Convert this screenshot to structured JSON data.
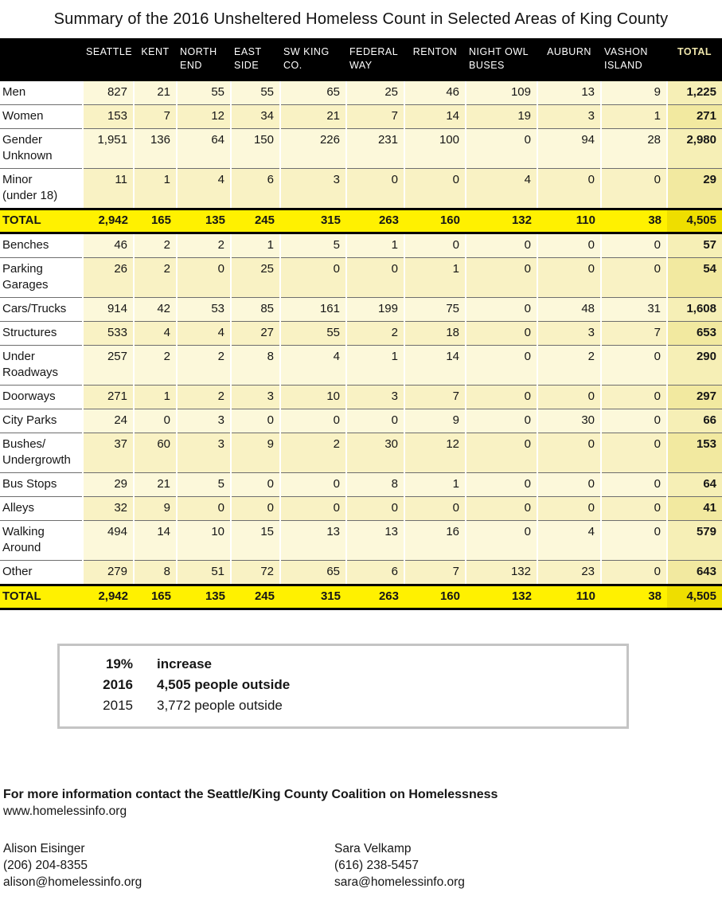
{
  "title": "Summary of the 2016 Unsheltered Homeless Count in Selected Areas of King County",
  "table": {
    "columns": [
      "SEATTLE",
      "KENT",
      "NORTH END",
      "EAST SIDE",
      "SW KING CO.",
      "FEDERAL WAY",
      "RENTON",
      "NIGHT OWL BUSES",
      "AUBURN",
      "VASHON ISLAND",
      "TOTAL"
    ],
    "rows": [
      {
        "label": [
          "Men"
        ],
        "type": "data",
        "values": [
          "827",
          "21",
          "55",
          "55",
          "65",
          "25",
          "46",
          "109",
          "13",
          "9"
        ],
        "total": "1,225"
      },
      {
        "label": [
          "Women"
        ],
        "type": "data",
        "values": [
          "153",
          "7",
          "12",
          "34",
          "21",
          "7",
          "14",
          "19",
          "3",
          "1"
        ],
        "total": "271"
      },
      {
        "label": [
          "Gender",
          "Unknown"
        ],
        "type": "data",
        "values": [
          "1,951",
          "136",
          "64",
          "150",
          "226",
          "231",
          "100",
          "0",
          "94",
          "28"
        ],
        "total": "2,980"
      },
      {
        "label": [
          "Minor",
          "(under 18)"
        ],
        "type": "data",
        "values": [
          "11",
          "1",
          "4",
          "6",
          "3",
          "0",
          "0",
          "4",
          "0",
          "0"
        ],
        "total": "29"
      },
      {
        "label": [
          "TOTAL"
        ],
        "type": "total",
        "values": [
          "2,942",
          "165",
          "135",
          "245",
          "315",
          "263",
          "160",
          "132",
          "110",
          "38"
        ],
        "total": "4,505"
      },
      {
        "label": [
          "Benches"
        ],
        "type": "data",
        "values": [
          "46",
          "2",
          "2",
          "1",
          "5",
          "1",
          "0",
          "0",
          "0",
          "0"
        ],
        "total": "57"
      },
      {
        "label": [
          "Parking",
          "Garages"
        ],
        "type": "data",
        "values": [
          "26",
          "2",
          "0",
          "25",
          "0",
          "0",
          "1",
          "0",
          "0",
          "0"
        ],
        "total": "54"
      },
      {
        "label": [
          "Cars/Trucks"
        ],
        "type": "data",
        "values": [
          "914",
          "42",
          "53",
          "85",
          "161",
          "199",
          "75",
          "0",
          "48",
          "31"
        ],
        "total": "1,608"
      },
      {
        "label": [
          "Structures"
        ],
        "type": "data",
        "values": [
          "533",
          "4",
          "4",
          "27",
          "55",
          "2",
          "18",
          "0",
          "3",
          "7"
        ],
        "total": "653"
      },
      {
        "label": [
          "Under",
          "Roadways"
        ],
        "type": "data",
        "values": [
          "257",
          "2",
          "2",
          "8",
          "4",
          "1",
          "14",
          "0",
          "2",
          "0"
        ],
        "total": "290"
      },
      {
        "label": [
          "Doorways"
        ],
        "type": "data",
        "values": [
          "271",
          "1",
          "2",
          "3",
          "10",
          "3",
          "7",
          "0",
          "0",
          "0"
        ],
        "total": "297"
      },
      {
        "label": [
          "City Parks"
        ],
        "type": "data",
        "values": [
          "24",
          "0",
          "3",
          "0",
          "0",
          "0",
          "9",
          "0",
          "30",
          "0"
        ],
        "total": "66"
      },
      {
        "label": [
          "Bushes/",
          "Undergrowth"
        ],
        "type": "data",
        "values": [
          "37",
          "60",
          "3",
          "9",
          "2",
          "30",
          "12",
          "0",
          "0",
          "0"
        ],
        "total": "153"
      },
      {
        "label": [
          "Bus Stops"
        ],
        "type": "data",
        "values": [
          "29",
          "21",
          "5",
          "0",
          "0",
          "8",
          "1",
          "0",
          "0",
          "0"
        ],
        "total": "64"
      },
      {
        "label": [
          "Alleys"
        ],
        "type": "data",
        "values": [
          "32",
          "9",
          "0",
          "0",
          "0",
          "0",
          "0",
          "0",
          "0",
          "0"
        ],
        "total": "41"
      },
      {
        "label": [
          "Walking",
          "Around"
        ],
        "type": "data",
        "values": [
          "494",
          "14",
          "10",
          "15",
          "13",
          "13",
          "16",
          "0",
          "4",
          "0"
        ],
        "total": "579"
      },
      {
        "label": [
          "Other"
        ],
        "type": "data",
        "values": [
          "279",
          "8",
          "51",
          "72",
          "65",
          "6",
          "7",
          "132",
          "23",
          "0"
        ],
        "total": "643"
      },
      {
        "label": [
          "TOTAL"
        ],
        "type": "total",
        "values": [
          "2,942",
          "165",
          "135",
          "245",
          "315",
          "263",
          "160",
          "132",
          "110",
          "38"
        ],
        "total": "4,505"
      }
    ]
  },
  "summary_box": {
    "lines": [
      {
        "left": "19%",
        "right": "increase",
        "bold": true
      },
      {
        "left": "2016",
        "right": "4,505 people outside",
        "bold": true
      },
      {
        "left": "2015",
        "right": "3,772 people outside",
        "bold": false
      }
    ]
  },
  "footer": {
    "heading": "For more information contact the Seattle/King County Coalition on Homelessness",
    "website": "www.homelessinfo.org",
    "contacts": [
      {
        "name": "Alison Eisinger",
        "phone": "(206) 204-8355",
        "email": "alison@homelessinfo.org"
      },
      {
        "name": "Sara Velkamp",
        "phone": "(616) 238-5457",
        "email": "sara@homelessinfo.org"
      }
    ]
  },
  "colors": {
    "header_bg": "#000000",
    "header_text": "#ffffff",
    "total_header_text": "#efe6ac",
    "row_light": "#fcf8da",
    "row_dark": "#f9f2c4",
    "total_col_light": "#f6efb6",
    "total_col_dark": "#f2e9a0",
    "total_row_bg": "#fff100",
    "total_row_total_cell": "#eede00",
    "separator": "#6e6e6e",
    "box_border": "#c4c4c4"
  }
}
